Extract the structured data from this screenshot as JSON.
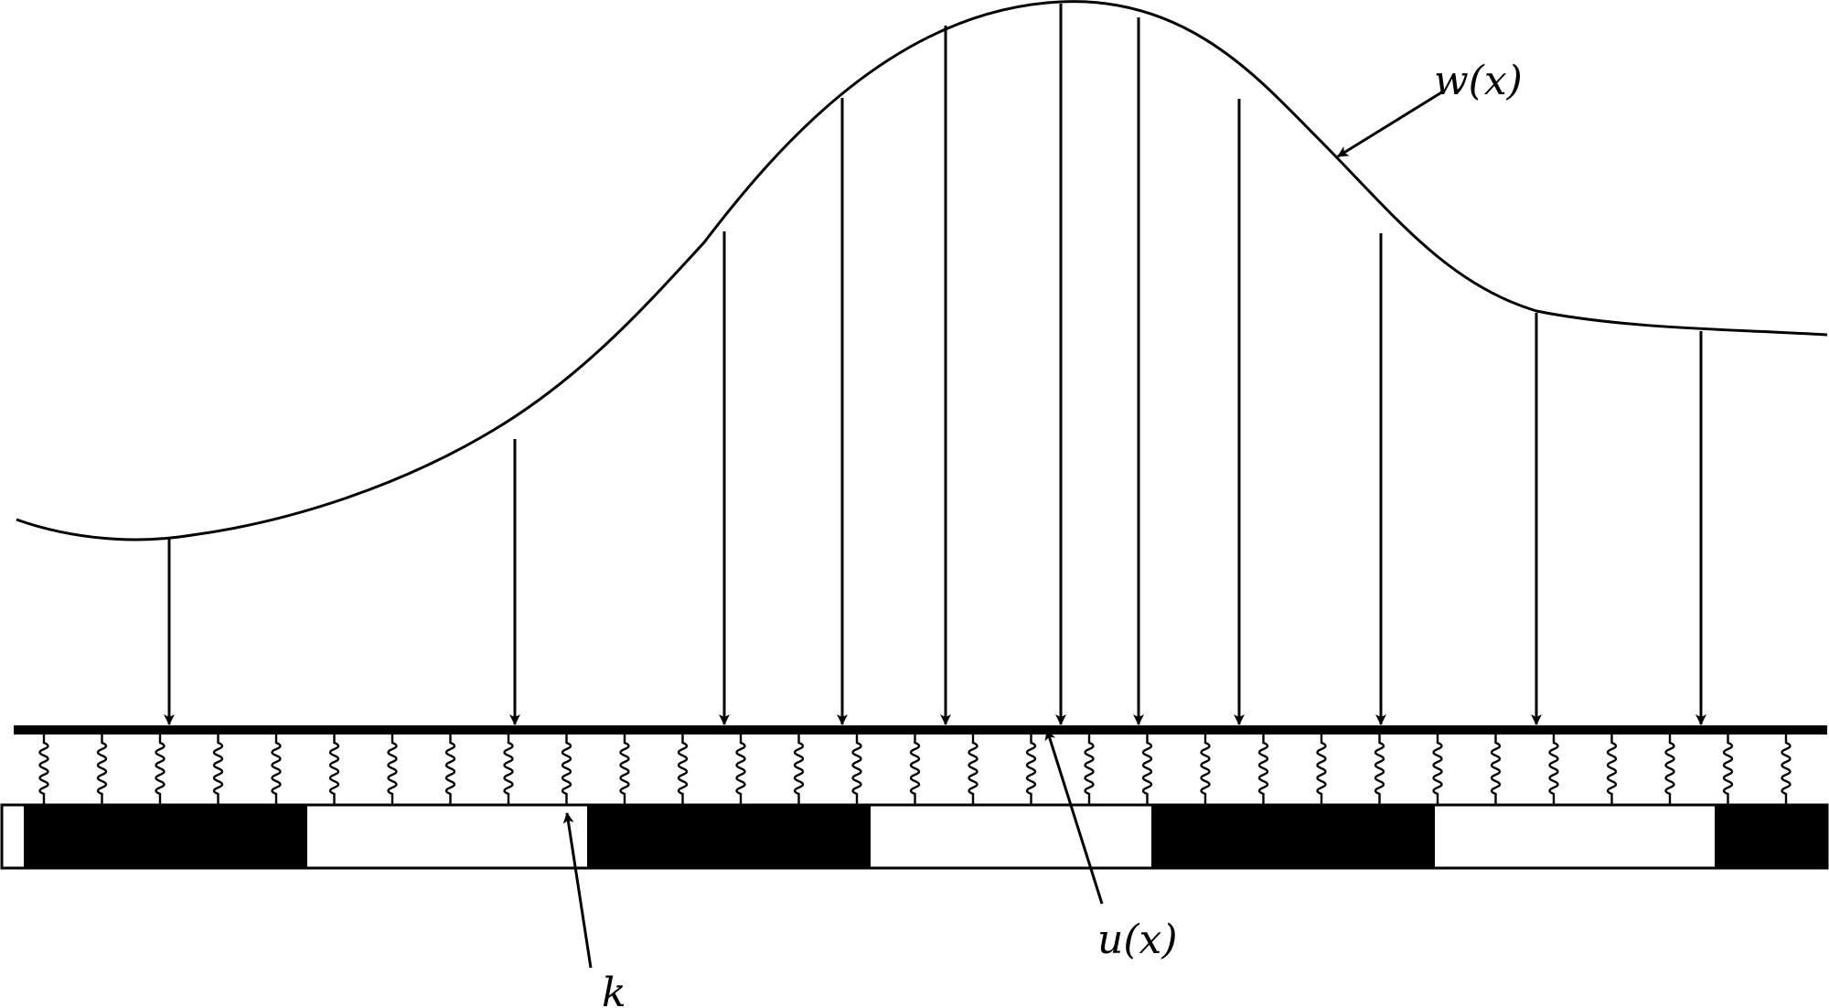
{
  "labels": {
    "load": "w(x)",
    "deflection": "u(x)",
    "stiffness": "k"
  },
  "colors": {
    "ink": "#000000",
    "paper": "#ffffff"
  },
  "foundation": {
    "pattern": [
      "white",
      "black",
      "white",
      "black",
      "white",
      "black",
      "white",
      "black"
    ],
    "spring_count": 31
  },
  "load_arrow_count": 11
}
